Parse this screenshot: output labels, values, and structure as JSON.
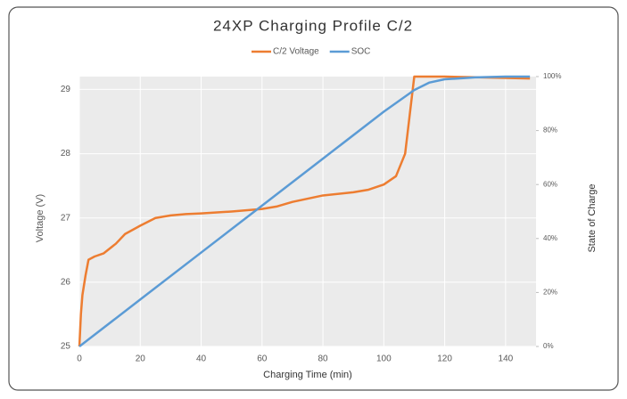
{
  "chart_data": {
    "type": "line",
    "title": "24XP Charging Profile C/2",
    "xlabel": "Charging Time (min)",
    "ylabel": "Voltage (V)",
    "y2label": "State of Charge",
    "xlim": [
      0,
      150
    ],
    "xticks": [
      0,
      20,
      40,
      60,
      80,
      100,
      120,
      140
    ],
    "ylim": [
      25,
      29.2
    ],
    "yticks": [
      25,
      26,
      27,
      28,
      29
    ],
    "y2lim": [
      0,
      100
    ],
    "y2ticks": [
      {
        "value": 0,
        "label": "0%"
      },
      {
        "value": 20,
        "label": "20%"
      },
      {
        "value": 40,
        "label": "40%"
      },
      {
        "value": 60,
        "label": "60%"
      },
      {
        "value": 80,
        "label": "80%"
      },
      {
        "value": 100,
        "label": "100%"
      }
    ],
    "grid": true,
    "legend": "top",
    "series": [
      {
        "name": "C/2 Voltage",
        "color": "#ed7d31",
        "x": [
          0,
          0.5,
          1,
          2,
          3,
          5,
          8,
          12,
          15,
          20,
          25,
          30,
          35,
          40,
          50,
          60,
          65,
          70,
          75,
          80,
          90,
          95,
          100,
          104,
          107,
          108,
          109,
          110,
          120,
          130,
          140,
          148
        ],
        "values": [
          25.0,
          25.5,
          25.8,
          26.1,
          26.35,
          26.4,
          26.45,
          26.6,
          26.75,
          26.88,
          27.0,
          27.04,
          27.06,
          27.07,
          27.1,
          27.14,
          27.18,
          27.25,
          27.3,
          27.35,
          27.4,
          27.44,
          27.52,
          27.65,
          28.0,
          28.4,
          28.8,
          29.2,
          29.2,
          29.19,
          29.18,
          29.17
        ]
      },
      {
        "name": "SOC",
        "color": "#5b9bd5",
        "axis": "y2",
        "x": [
          0,
          20,
          40,
          60,
          80,
          100,
          110,
          115,
          120,
          130,
          140,
          148
        ],
        "values": [
          0,
          17.4,
          34.8,
          52.2,
          69.6,
          87,
          95,
          97.8,
          99,
          99.7,
          100,
          100
        ]
      }
    ]
  }
}
